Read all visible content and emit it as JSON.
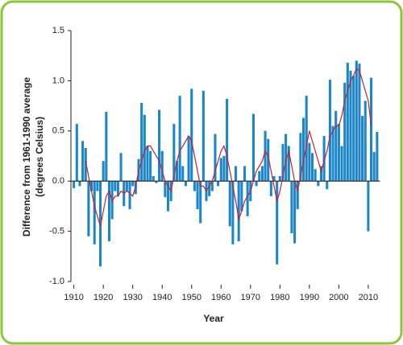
{
  "chart_data": {
    "type": "bar",
    "x_label": "Year",
    "y_label": [
      "Difference from 1961-1990 average",
      "(degrees Celsius)"
    ],
    "x": [
      1910,
      1911,
      1912,
      1913,
      1914,
      1915,
      1916,
      1917,
      1918,
      1919,
      1920,
      1921,
      1922,
      1923,
      1924,
      1925,
      1926,
      1927,
      1928,
      1929,
      1930,
      1931,
      1932,
      1933,
      1934,
      1935,
      1936,
      1937,
      1938,
      1939,
      1940,
      1941,
      1942,
      1943,
      1944,
      1945,
      1946,
      1947,
      1948,
      1949,
      1950,
      1951,
      1952,
      1953,
      1954,
      1955,
      1956,
      1957,
      1958,
      1959,
      1960,
      1961,
      1962,
      1963,
      1964,
      1965,
      1966,
      1967,
      1968,
      1969,
      1970,
      1971,
      1972,
      1973,
      1974,
      1975,
      1976,
      1977,
      1978,
      1979,
      1980,
      1981,
      1982,
      1983,
      1984,
      1985,
      1986,
      1987,
      1988,
      1989,
      1990,
      1991,
      1992,
      1993,
      1994,
      1995,
      1996,
      1997,
      1998,
      1999,
      2000,
      2001,
      2002,
      2003,
      2004,
      2005,
      2006,
      2007,
      2008,
      2009,
      2010,
      2011,
      2012,
      2013
    ],
    "series": [
      {
        "type": "bar",
        "color": "#1c86c8",
        "values": [
          -0.07,
          0.57,
          -0.05,
          0.4,
          0.33,
          -0.55,
          -0.1,
          -0.63,
          -0.1,
          -0.85,
          0.2,
          0.69,
          -0.6,
          -0.38,
          -0.1,
          -0.15,
          0.28,
          -0.25,
          -0.1,
          -0.28,
          -0.05,
          -0.13,
          0.22,
          0.78,
          0.66,
          0.35,
          0.3,
          0.05,
          -0.02,
          0.71,
          0.3,
          -0.16,
          -0.3,
          -0.2,
          0.57,
          0.2,
          0.85,
          0.15,
          -0.05,
          0.45,
          0.92,
          -0.1,
          -0.28,
          -0.42,
          0.9,
          -0.2,
          -0.15,
          -0.1,
          0.47,
          -0.05,
          0.23,
          0.25,
          0.82,
          -0.45,
          -0.63,
          0.15,
          -0.6,
          -0.3,
          0.15,
          -0.35,
          -0.2,
          0.67,
          -0.05,
          0.1,
          0.15,
          0.5,
          0.42,
          -0.15,
          0.05,
          -0.83,
          0.05,
          0.37,
          0.47,
          0.35,
          -0.52,
          -0.62,
          -0.28,
          0.48,
          0.63,
          0.85,
          0.38,
          0.28,
          0.12,
          -0.05,
          0.15,
          0.45,
          -0.08,
          1.01,
          0.55,
          0.7,
          0.57,
          0.35,
          0.98,
          1.18,
          1.1,
          1.05,
          1.2,
          1.17,
          0.65,
          0.8,
          -0.5,
          1.03,
          0.29,
          0.49
        ]
      },
      {
        "type": "line",
        "color": "#c8202c",
        "values": [
          null,
          null,
          null,
          null,
          0.2,
          0.05,
          -0.1,
          -0.25,
          -0.35,
          -0.45,
          -0.3,
          -0.15,
          -0.1,
          -0.2,
          -0.15,
          -0.15,
          -0.1,
          -0.12,
          -0.1,
          -0.12,
          -0.15,
          -0.05,
          0.1,
          0.2,
          0.3,
          0.35,
          0.35,
          0.3,
          0.25,
          0.2,
          0.1,
          0.0,
          -0.05,
          -0.1,
          0.05,
          0.2,
          0.3,
          0.35,
          0.4,
          0.45,
          0.4,
          0.25,
          0.1,
          -0.05,
          -0.05,
          -0.1,
          -0.05,
          0.0,
          0.1,
          0.2,
          0.3,
          0.35,
          0.25,
          0.1,
          -0.05,
          -0.2,
          -0.38,
          -0.3,
          -0.2,
          -0.15,
          -0.1,
          0.0,
          0.1,
          0.15,
          0.2,
          0.3,
          0.25,
          0.1,
          -0.05,
          -0.2,
          -0.1,
          0.05,
          0.2,
          0.3,
          0.15,
          0.0,
          -0.1,
          0.05,
          0.2,
          0.35,
          0.5,
          0.4,
          0.3,
          0.2,
          0.1,
          0.2,
          0.3,
          0.45,
          0.5,
          0.55,
          0.55,
          0.65,
          0.8,
          0.9,
          1.0,
          1.05,
          1.12,
          1.1,
          1.0,
          0.9,
          0.8,
          0.55,
          null,
          null
        ]
      }
    ],
    "xlim": [
      1909,
      2014
    ],
    "xticks": [
      1910,
      1920,
      1930,
      1940,
      1950,
      1960,
      1970,
      1980,
      1990,
      2000,
      2010
    ],
    "ylim": [
      -1.0,
      1.5
    ],
    "yticks": [
      {
        "value": -1.0,
        "label": "-1.0"
      },
      {
        "value": -0.5,
        "label": "-0.5"
      },
      {
        "value": 0.0,
        "label": "0.0"
      },
      {
        "value": 0.5,
        "label": "0.5"
      },
      {
        "value": 1.0,
        "label": "1.0"
      },
      1.5
    ]
  }
}
